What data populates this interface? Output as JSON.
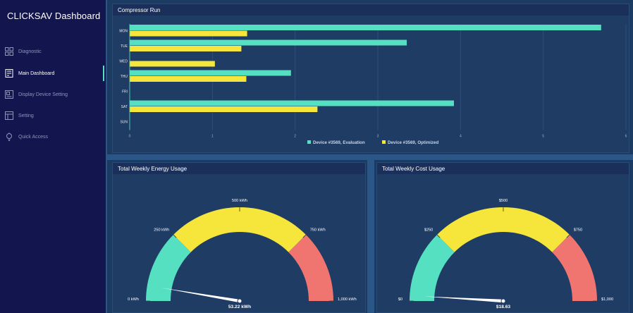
{
  "app": {
    "title": "CLICKSAV Dashboard"
  },
  "sidebar": {
    "items": [
      {
        "label": "Diagnostic",
        "icon": "grid-icon",
        "active": false
      },
      {
        "label": "Main Dashboard",
        "icon": "dashboard-icon",
        "active": true
      },
      {
        "label": "Display Device Setting",
        "icon": "display-device-icon",
        "active": false
      },
      {
        "label": "Setting",
        "icon": "settings-panel-icon",
        "active": false
      },
      {
        "label": "Quick Access",
        "icon": "lightbulb-icon",
        "active": false
      }
    ]
  },
  "colors": {
    "teal": "#55e0c1",
    "yellow": "#f6e53a",
    "red": "#f07570",
    "sidebar": "#13154f",
    "panel": "#1f3c64"
  },
  "compressor": {
    "title": "Compressor Run"
  },
  "energy": {
    "title": "Total Weekly Energy Usage"
  },
  "cost": {
    "title": "Total Weekly Cost Usage"
  },
  "chart_data": [
    {
      "type": "bar",
      "orientation": "horizontal",
      "title": "Compressor Run",
      "categories": [
        "MON",
        "TUE",
        "WED",
        "THU",
        "FRI",
        "SAT",
        "SUN"
      ],
      "series": [
        {
          "name": "Device #3569, Evaluation",
          "color": "#55e0c1",
          "values": [
            5.7,
            3.35,
            0,
            1.95,
            0,
            3.92,
            0
          ]
        },
        {
          "name": "Device #3569, Optimized",
          "color": "#f6e53a",
          "values": [
            1.42,
            1.35,
            1.03,
            1.41,
            0,
            2.27,
            0
          ]
        }
      ],
      "xlim": [
        0,
        6
      ],
      "xticks": [
        "0",
        "1",
        "2",
        "3",
        "4",
        "5",
        "6"
      ],
      "legend": "bottom-center"
    },
    {
      "type": "gauge",
      "title": "Total Weekly Energy Usage",
      "min": 0,
      "max": 1000,
      "value": 53.22,
      "value_label": "53.22 kWh",
      "tick_labels": [
        "0 kWh",
        "250 kWh",
        "500 kWh",
        "750 kWh",
        "1,000 kWh"
      ],
      "bands": [
        {
          "from": 0,
          "to": 250,
          "color": "#55e0c1"
        },
        {
          "from": 250,
          "to": 750,
          "color": "#f6e53a"
        },
        {
          "from": 750,
          "to": 1000,
          "color": "#f07570"
        }
      ]
    },
    {
      "type": "gauge",
      "title": "Total Weekly Cost Usage",
      "min": 0,
      "max": 1000,
      "value": 18.63,
      "value_label": "$18.63",
      "tick_labels": [
        "$0",
        "$250",
        "$500",
        "$750",
        "$1,000"
      ],
      "bands": [
        {
          "from": 0,
          "to": 250,
          "color": "#55e0c1"
        },
        {
          "from": 250,
          "to": 750,
          "color": "#f6e53a"
        },
        {
          "from": 750,
          "to": 1000,
          "color": "#f07570"
        }
      ]
    }
  ]
}
